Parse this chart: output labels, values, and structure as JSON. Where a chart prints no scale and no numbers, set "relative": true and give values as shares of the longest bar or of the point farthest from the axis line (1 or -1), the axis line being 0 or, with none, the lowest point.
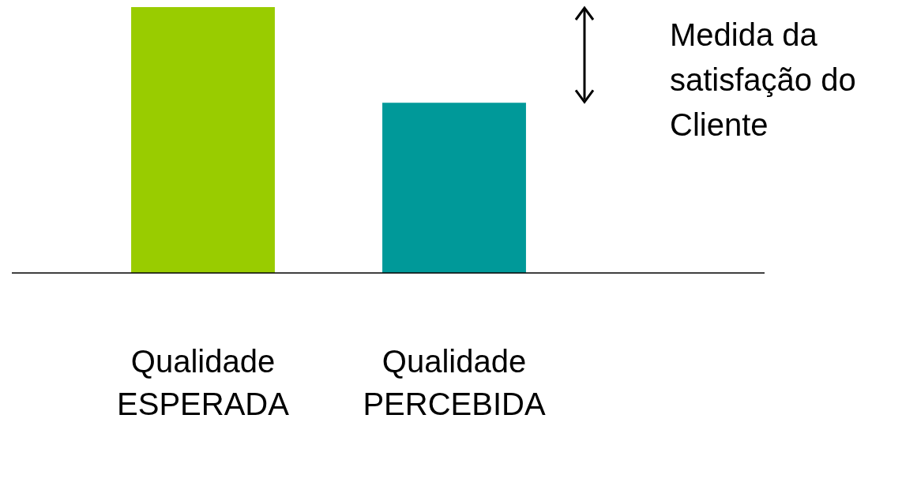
{
  "chart_data": {
    "type": "bar",
    "relative": true,
    "categories": [
      "Qualidade ESPERADA",
      "Qualidade PERCEBIDA"
    ],
    "values": [
      1,
      0.64
    ],
    "colors": [
      "#99cc00",
      "#009999"
    ],
    "annotations": [
      "Medida da satisfação do Cliente"
    ],
    "grid": false,
    "legend": false
  }
}
